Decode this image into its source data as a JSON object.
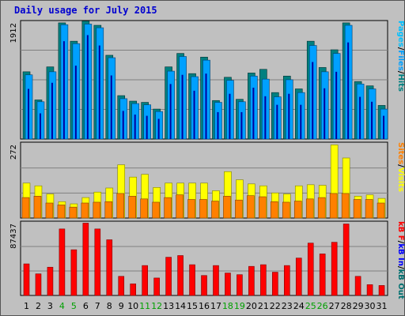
{
  "title": "Daily usage for July 2015",
  "colors": {
    "pages": "#00c0ff",
    "pages_dark": "#0000a0",
    "files": "#00a0ff",
    "hits": "#006060",
    "hits_face": "#008080",
    "sites": "#ff8000",
    "visits": "#ffff00",
    "kbf": "#ff0000",
    "kbin": "#0000ff",
    "kbout": "#007070",
    "weekend": "#00a000",
    "panel_bg": "#c0c0c0",
    "grid": "#808080"
  },
  "chart_data": [
    {
      "type": "bar",
      "name": "hits-files-pages",
      "categories": [
        "1",
        "2",
        "3",
        "4",
        "5",
        "6",
        "7",
        "8",
        "9",
        "10",
        "11",
        "12",
        "13",
        "14",
        "15",
        "16",
        "17",
        "18",
        "19",
        "20",
        "21",
        "22",
        "23",
        "24",
        "25",
        "26",
        "27",
        "28",
        "29",
        "30",
        "31"
      ],
      "ymax": 1912,
      "ymax_label": "1912",
      "ylabel_parts": [
        "Pages",
        "/",
        "Files",
        "/",
        "Hits"
      ],
      "series": [
        {
          "name": "Hits",
          "values": [
            1100,
            640,
            1180,
            1900,
            1600,
            1930,
            1860,
            1370,
            710,
            620,
            600,
            490,
            1180,
            1400,
            1070,
            1340,
            630,
            1010,
            650,
            1080,
            1140,
            760,
            1030,
            820,
            1600,
            1170,
            1460,
            1900,
            940,
            870,
            550
          ]
        },
        {
          "name": "Files",
          "values": [
            1050,
            610,
            1100,
            1870,
            1560,
            1880,
            1820,
            1330,
            660,
            580,
            560,
            450,
            1110,
            1350,
            1020,
            1290,
            600,
            960,
            610,
            1030,
            980,
            690,
            970,
            760,
            1530,
            1100,
            1400,
            1860,
            900,
            820,
            490
          ]
        },
        {
          "name": "Pages",
          "values": [
            820,
            420,
            920,
            1600,
            1200,
            1700,
            1530,
            1040,
            460,
            400,
            380,
            330,
            900,
            1050,
            790,
            1070,
            440,
            740,
            440,
            840,
            700,
            560,
            740,
            560,
            1260,
            830,
            1100,
            1580,
            690,
            610,
            380
          ]
        }
      ]
    },
    {
      "type": "bar",
      "name": "visits-sites",
      "categories": [
        "1",
        "2",
        "3",
        "4",
        "5",
        "6",
        "7",
        "8",
        "9",
        "10",
        "11",
        "12",
        "13",
        "14",
        "15",
        "16",
        "17",
        "18",
        "19",
        "20",
        "21",
        "22",
        "23",
        "24",
        "25",
        "26",
        "27",
        "28",
        "29",
        "30",
        "31"
      ],
      "ymax": 272,
      "ymax_label": "272",
      "ylabel_parts": [
        "Sites",
        "/",
        "Visits"
      ],
      "series": [
        {
          "name": "Visits",
          "values": [
            128,
            118,
            88,
            60,
            52,
            75,
            95,
            110,
            195,
            150,
            160,
            112,
            128,
            128,
            128,
            128,
            100,
            170,
            140,
            125,
            118,
            92,
            88,
            118,
            122,
            120,
            268,
            220,
            80,
            85,
            72
          ]
        },
        {
          "name": "Sites",
          "values": [
            75,
            80,
            55,
            48,
            40,
            55,
            58,
            60,
            90,
            80,
            70,
            58,
            75,
            85,
            68,
            68,
            62,
            80,
            66,
            82,
            78,
            60,
            58,
            62,
            70,
            75,
            90,
            90,
            68,
            68,
            55
          ]
        }
      ]
    },
    {
      "type": "bar",
      "name": "kbytes",
      "categories": [
        "1",
        "2",
        "3",
        "4",
        "5",
        "6",
        "7",
        "8",
        "9",
        "10",
        "11",
        "12",
        "13",
        "14",
        "15",
        "16",
        "17",
        "18",
        "19",
        "20",
        "21",
        "22",
        "23",
        "24",
        "25",
        "26",
        "27",
        "28",
        "29",
        "30",
        "31"
      ],
      "ymax": 87437,
      "ymax_label": "87437",
      "ylabel_parts": [
        "kB F",
        "/",
        "kB In",
        "/",
        "kB Out"
      ],
      "series": [
        {
          "name": "kB F",
          "values": [
            38000,
            26000,
            34000,
            80000,
            55000,
            87000,
            80000,
            67000,
            23000,
            14000,
            36000,
            21000,
            46000,
            48000,
            37000,
            24000,
            36000,
            27000,
            25000,
            35000,
            37000,
            28000,
            36000,
            45000,
            63000,
            50000,
            64000,
            86000,
            23000,
            13000,
            12000
          ]
        }
      ]
    }
  ],
  "xaxis": {
    "labels": [
      "1",
      "2",
      "3",
      "4",
      "5",
      "6",
      "7",
      "8",
      "9",
      "10",
      "11",
      "12",
      "13",
      "14",
      "15",
      "16",
      "17",
      "18",
      "19",
      "20",
      "21",
      "22",
      "23",
      "24",
      "25",
      "26",
      "27",
      "28",
      "29",
      "30",
      "31"
    ],
    "weekend_days": [
      "4",
      "5",
      "11",
      "12",
      "18",
      "19",
      "25",
      "26"
    ]
  }
}
